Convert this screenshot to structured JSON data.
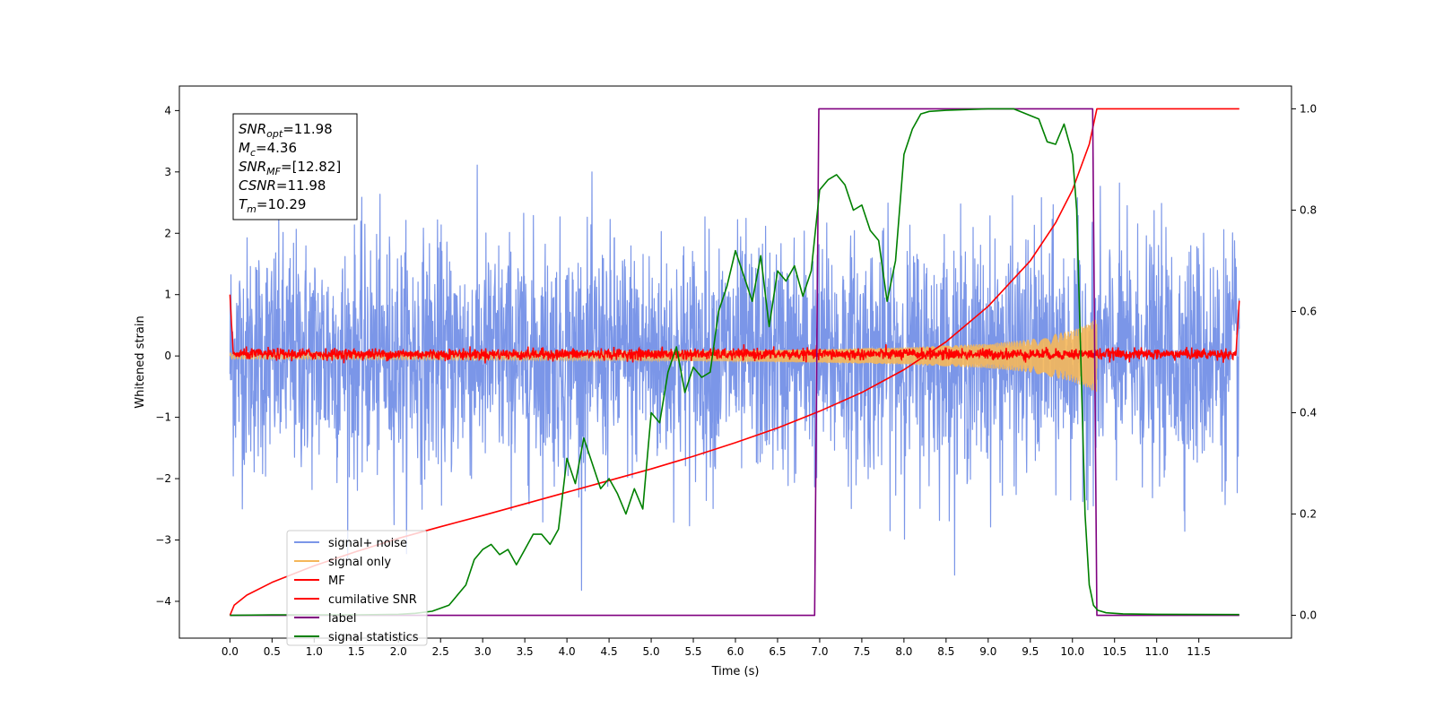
{
  "chart_data": {
    "type": "line",
    "xlabel": "Time (s)",
    "ylabel": "Whitened strain",
    "xlim": [
      -0.6,
      12.6
    ],
    "ylim": [
      -4.6,
      4.4
    ],
    "y2lim": [
      -0.045,
      1.045
    ],
    "x_ticks": [
      0.0,
      0.5,
      1.0,
      1.5,
      2.0,
      2.5,
      3.0,
      3.5,
      4.0,
      4.5,
      5.0,
      5.5,
      6.0,
      6.5,
      7.0,
      7.5,
      8.0,
      8.5,
      9.0,
      9.5,
      10.0,
      10.5,
      11.0,
      11.5
    ],
    "x_tick_labels": [
      "0.0",
      "0.5",
      "1.0",
      "1.5",
      "2.0",
      "2.5",
      "3.0",
      "3.5",
      "4.0",
      "4.5",
      "5.0",
      "5.5",
      "6.0",
      "6.5",
      "7.0",
      "7.5",
      "8.0",
      "8.5",
      "9.0",
      "9.5",
      "10.0",
      "10.5",
      "11.0",
      "11.5"
    ],
    "y_ticks": [
      -4,
      -3,
      -2,
      -1,
      0,
      1,
      2,
      3,
      4
    ],
    "y_tick_labels": [
      "−4",
      "−3",
      "−2",
      "−1",
      "0",
      "1",
      "2",
      "3",
      "4"
    ],
    "y2_ticks": [
      0.0,
      0.2,
      0.4,
      0.6,
      0.8,
      1.0
    ],
    "y2_tick_labels": [
      "0.0",
      "0.2",
      "0.4",
      "0.6",
      "0.8",
      "1.0"
    ],
    "grid": false,
    "legend_position": "lower-left",
    "annotation": {
      "lines": [
        {
          "base": "SNR",
          "sub": "opt",
          "value": "=11.98"
        },
        {
          "base": "M",
          "sub": "c",
          "value": "=4.36"
        },
        {
          "base": "SNR",
          "sub": "MF",
          "value": "=[12.82]"
        },
        {
          "base": "CSNR",
          "sub": "",
          "value": "=11.98"
        },
        {
          "base": "T",
          "sub": "m",
          "value": "=10.29"
        }
      ]
    },
    "series": [
      {
        "name": "signal+ noise",
        "color": "#7b96e8",
        "axis": "left",
        "kind": "noise",
        "x_range": [
          0.0,
          11.98
        ],
        "std": 0.95,
        "peak_max": 4.0,
        "peak_min": -4.15
      },
      {
        "name": "signal only",
        "color": "#f5b75a",
        "axis": "left",
        "kind": "chirp",
        "x_range": [
          0.0,
          10.29
        ],
        "envelope": {
          "x": [
            0.0,
            2.0,
            4.0,
            6.0,
            7.0,
            8.0,
            9.0,
            9.5,
            10.0,
            10.29
          ],
          "y": [
            0.05,
            0.06,
            0.07,
            0.09,
            0.11,
            0.14,
            0.2,
            0.27,
            0.42,
            0.6
          ]
        }
      },
      {
        "name": "MF",
        "color": "#ff0000",
        "axis": "left",
        "kind": "mf",
        "x_range": [
          0.0,
          11.98
        ],
        "center": 0.03,
        "amplitude": 0.09,
        "start_value": 1.0,
        "end_value": 0.9
      },
      {
        "name": "cumilative SNR",
        "color": "#ff0000",
        "axis": "right",
        "x": [
          0.0,
          0.05,
          0.2,
          0.5,
          1.0,
          1.5,
          2.0,
          2.5,
          3.0,
          3.5,
          4.0,
          4.5,
          5.0,
          5.5,
          6.0,
          6.5,
          7.0,
          7.5,
          8.0,
          8.5,
          9.0,
          9.5,
          9.8,
          10.0,
          10.2,
          10.29,
          11.98
        ],
        "y": [
          0.0,
          0.02,
          0.04,
          0.065,
          0.098,
          0.126,
          0.152,
          0.175,
          0.197,
          0.22,
          0.243,
          0.266,
          0.289,
          0.314,
          0.341,
          0.37,
          0.403,
          0.44,
          0.485,
          0.54,
          0.61,
          0.7,
          0.775,
          0.84,
          0.93,
          1.0,
          1.0
        ]
      },
      {
        "name": "label",
        "color": "#800080",
        "axis": "right",
        "x": [
          0.0,
          6.94,
          6.99,
          10.24,
          10.29,
          11.98
        ],
        "y": [
          0.0,
          0.0,
          1.0,
          1.0,
          0.0,
          0.0
        ]
      },
      {
        "name": "signal statistics",
        "color": "#008000",
        "axis": "right",
        "x": [
          0.0,
          0.5,
          1.0,
          1.5,
          2.0,
          2.2,
          2.4,
          2.6,
          2.8,
          2.9,
          3.0,
          3.1,
          3.2,
          3.3,
          3.4,
          3.5,
          3.6,
          3.7,
          3.8,
          3.9,
          4.0,
          4.1,
          4.2,
          4.3,
          4.4,
          4.5,
          4.6,
          4.7,
          4.8,
          4.9,
          5.0,
          5.1,
          5.2,
          5.3,
          5.4,
          5.5,
          5.6,
          5.7,
          5.8,
          5.9,
          6.0,
          6.1,
          6.2,
          6.3,
          6.4,
          6.5,
          6.6,
          6.7,
          6.8,
          6.9,
          7.0,
          7.1,
          7.2,
          7.3,
          7.4,
          7.5,
          7.6,
          7.7,
          7.8,
          7.9,
          8.0,
          8.1,
          8.2,
          8.3,
          8.5,
          9.0,
          9.3,
          9.6,
          9.7,
          9.8,
          9.9,
          10.0,
          10.05,
          10.1,
          10.15,
          10.2,
          10.25,
          10.3,
          10.4,
          10.6,
          11.0,
          11.98
        ],
        "y": [
          0.0,
          0.001,
          0.001,
          0.001,
          0.002,
          0.004,
          0.008,
          0.02,
          0.06,
          0.11,
          0.13,
          0.14,
          0.12,
          0.13,
          0.1,
          0.13,
          0.16,
          0.16,
          0.14,
          0.17,
          0.31,
          0.26,
          0.35,
          0.3,
          0.25,
          0.27,
          0.24,
          0.2,
          0.25,
          0.21,
          0.4,
          0.38,
          0.48,
          0.53,
          0.44,
          0.49,
          0.47,
          0.48,
          0.6,
          0.65,
          0.72,
          0.67,
          0.62,
          0.71,
          0.57,
          0.68,
          0.66,
          0.69,
          0.63,
          0.68,
          0.84,
          0.86,
          0.87,
          0.85,
          0.8,
          0.81,
          0.76,
          0.74,
          0.62,
          0.7,
          0.91,
          0.96,
          0.99,
          0.995,
          0.997,
          1.0,
          1.0,
          0.98,
          0.935,
          0.93,
          0.97,
          0.91,
          0.8,
          0.5,
          0.2,
          0.06,
          0.02,
          0.01,
          0.005,
          0.003,
          0.002,
          0.0015
        ]
      }
    ]
  }
}
